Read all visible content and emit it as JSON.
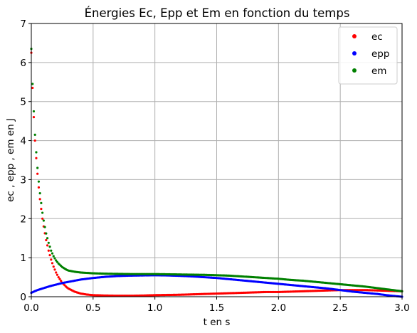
{
  "chart_data": {
    "type": "scatter",
    "title": "Énergies Ec, Epp et Em en fonction du temps",
    "xlabel": "t en s",
    "ylabel": "ec , epp , em en J",
    "xlim": [
      0,
      3.0
    ],
    "ylim": [
      0,
      7
    ],
    "grid": true,
    "legend_position": "top-right",
    "xticks": [
      "0.0",
      "0.5",
      "1.0",
      "1.5",
      "2.0",
      "2.5",
      "3.0"
    ],
    "yticks": [
      "0",
      "1",
      "2",
      "3",
      "4",
      "5",
      "6",
      "7"
    ],
    "series": [
      {
        "name": "ec",
        "color": "#ff0000",
        "x": [
          0.0,
          0.005,
          0.01,
          0.02,
          0.03,
          0.04,
          0.05,
          0.06,
          0.07,
          0.08,
          0.09,
          0.1,
          0.12,
          0.14,
          0.16,
          0.18,
          0.2,
          0.22,
          0.25,
          0.28,
          0.3,
          0.35,
          0.4,
          0.45,
          0.5,
          0.6,
          0.7,
          0.8,
          0.9,
          1.0,
          1.1,
          1.2,
          1.3,
          1.4,
          1.5,
          1.6,
          1.7,
          1.8,
          1.9,
          2.0,
          2.1,
          2.2,
          2.3,
          2.4,
          2.5,
          2.6,
          2.7,
          2.8,
          2.9,
          3.0
        ],
        "y": [
          6.25,
          6.25,
          5.35,
          4.6,
          4.0,
          3.55,
          3.15,
          2.8,
          2.5,
          2.25,
          2.0,
          1.8,
          1.45,
          1.18,
          0.95,
          0.77,
          0.62,
          0.5,
          0.36,
          0.26,
          0.21,
          0.13,
          0.08,
          0.055,
          0.04,
          0.03,
          0.025,
          0.025,
          0.03,
          0.04,
          0.045,
          0.05,
          0.06,
          0.07,
          0.08,
          0.09,
          0.1,
          0.11,
          0.12,
          0.12,
          0.13,
          0.14,
          0.15,
          0.16,
          0.17,
          0.17,
          0.17,
          0.16,
          0.15,
          0.14
        ]
      },
      {
        "name": "epp",
        "color": "#0000ff",
        "x": [
          0.0,
          0.02,
          0.05,
          0.1,
          0.15,
          0.2,
          0.25,
          0.3,
          0.4,
          0.5,
          0.6,
          0.7,
          0.8,
          0.9,
          1.0,
          1.1,
          1.2,
          1.3,
          1.4,
          1.5,
          1.6,
          1.7,
          1.8,
          1.9,
          2.0,
          2.1,
          2.2,
          2.3,
          2.4,
          2.5,
          2.6,
          2.7,
          2.8,
          2.9,
          3.0
        ],
        "y": [
          0.1,
          0.13,
          0.17,
          0.22,
          0.27,
          0.31,
          0.35,
          0.38,
          0.44,
          0.48,
          0.51,
          0.53,
          0.54,
          0.545,
          0.55,
          0.545,
          0.535,
          0.52,
          0.5,
          0.48,
          0.45,
          0.42,
          0.39,
          0.36,
          0.33,
          0.3,
          0.27,
          0.24,
          0.21,
          0.17,
          0.13,
          0.1,
          0.07,
          0.03,
          0.0
        ]
      },
      {
        "name": "em",
        "color": "#008000",
        "x": [
          0.0,
          0.005,
          0.01,
          0.02,
          0.03,
          0.04,
          0.05,
          0.06,
          0.07,
          0.08,
          0.09,
          0.1,
          0.12,
          0.14,
          0.16,
          0.18,
          0.2,
          0.22,
          0.25,
          0.28,
          0.3,
          0.35,
          0.4,
          0.45,
          0.5,
          0.6,
          0.7,
          0.8,
          0.9,
          1.0,
          1.1,
          1.2,
          1.3,
          1.4,
          1.5,
          1.6,
          1.7,
          1.8,
          1.9,
          2.0,
          2.1,
          2.2,
          2.3,
          2.4,
          2.5,
          2.6,
          2.7,
          2.8,
          2.9,
          3.0
        ],
        "y": [
          6.35,
          6.35,
          5.45,
          4.75,
          4.15,
          3.7,
          3.3,
          2.95,
          2.65,
          2.4,
          2.15,
          1.95,
          1.62,
          1.38,
          1.18,
          1.04,
          0.93,
          0.85,
          0.76,
          0.7,
          0.67,
          0.64,
          0.62,
          0.61,
          0.6,
          0.59,
          0.585,
          0.58,
          0.58,
          0.58,
          0.575,
          0.57,
          0.565,
          0.56,
          0.55,
          0.54,
          0.52,
          0.5,
          0.48,
          0.46,
          0.43,
          0.41,
          0.38,
          0.35,
          0.32,
          0.29,
          0.26,
          0.22,
          0.18,
          0.14
        ]
      }
    ]
  }
}
